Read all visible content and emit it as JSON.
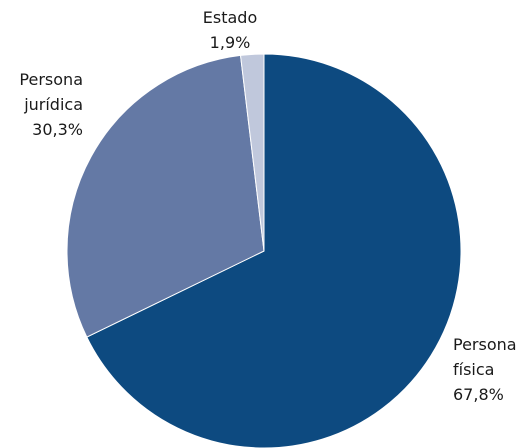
{
  "chart_data": {
    "type": "pie",
    "categories": [
      "Persona física",
      "Persona jurídica",
      "Estado"
    ],
    "values": [
      67.8,
      30.3,
      1.9
    ],
    "value_labels": [
      "67,8%",
      "30,3%",
      "1,9%"
    ],
    "colors": [
      "#0d4a80",
      "#6479a5",
      "#c0c8dc"
    ]
  }
}
